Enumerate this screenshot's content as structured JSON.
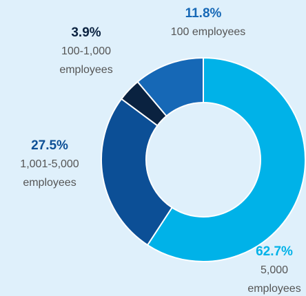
{
  "chart_data": {
    "type": "donut",
    "categories": [
      [
        "5,000",
        "employees"
      ],
      [
        "1,001-5,000",
        "employees"
      ],
      [
        "100-1,000",
        "employees"
      ],
      [
        "100 employees"
      ]
    ],
    "series": [
      {
        "values": [
          62.7,
          27.5,
          3.9,
          11.8
        ],
        "value_labels": [
          "62.7%",
          "27.5%",
          "3.9%",
          "11.8%"
        ],
        "colors": [
          "#00b2e8",
          "#0c4f96",
          "#0a2240",
          "#1668b6"
        ]
      }
    ]
  }
}
